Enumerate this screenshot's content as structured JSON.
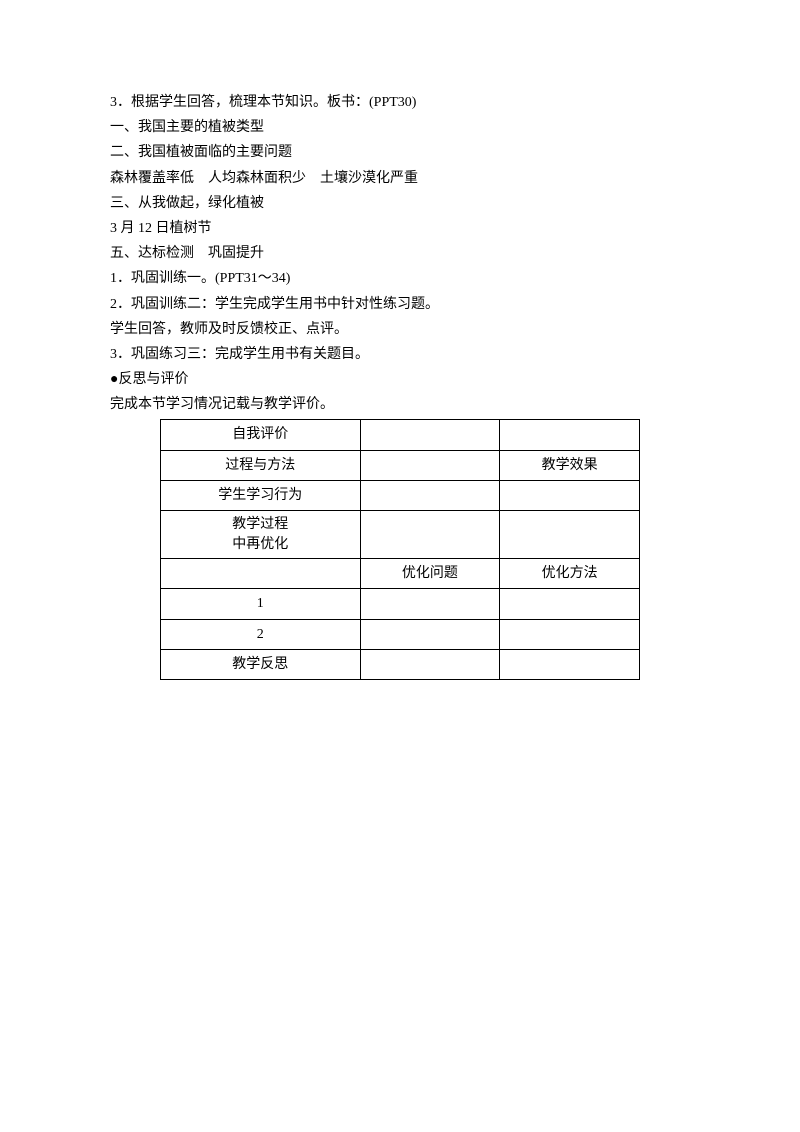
{
  "lines": {
    "line1": "3．根据学生回答，梳理本节知识。板书：(PPT30)",
    "line2": "一、我国主要的植被类型",
    "line3": "二、我国植被面临的主要问题",
    "line4": "森林覆盖率低　人均森林面积少　土壤沙漠化严重",
    "line5": "三、从我做起，绿化植被",
    "line6": "3 月 12 日植树节",
    "line7": "五、达标检测　巩固提升",
    "line8": "1．巩固训练一。(PPT31～34)",
    "line9": "2．巩固训练二：学生完成学生用书中针对性练习题。",
    "line10": "学生回答，教师及时反馈校正、点评。",
    "line11": "3．巩固练习三：完成学生用书有关题目。",
    "line12": "●反思与评价",
    "line13": "完成本节学习情况记载与教学评价。"
  },
  "table": {
    "r1c1": "自我评价",
    "r1c2": "",
    "r1c3": "",
    "r2c1": "过程与方法",
    "r2c2": "",
    "r2c3": "教学效果",
    "r3c1": "学生学习行为",
    "r3c2": "",
    "r3c3": "",
    "r4c1a": "教学过程",
    "r4c1b": "中再优化",
    "r4c2": "",
    "r4c3": "",
    "r5c1": "",
    "r5c2": "优化问题",
    "r5c3": "优化方法",
    "r6c1": "1",
    "r6c2": "",
    "r6c3": "",
    "r7c1": "2",
    "r7c2": "",
    "r7c3": "",
    "r8c1": "教学反思",
    "r8c2": "",
    "r8c3": ""
  }
}
